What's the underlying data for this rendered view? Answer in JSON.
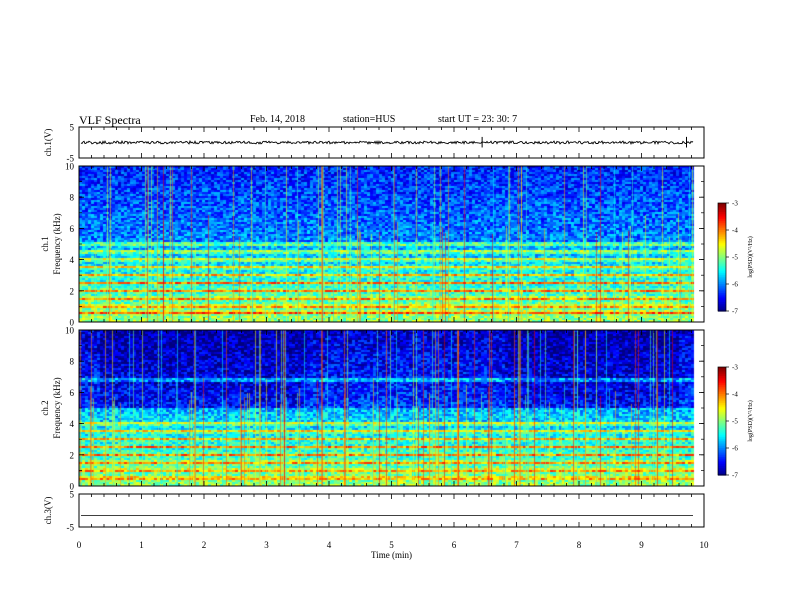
{
  "header": {
    "title": "VLF Spectra",
    "date": "Feb. 14, 2018",
    "station": "station=HUS",
    "start": "start  UT  =   23: 30: 7"
  },
  "chart_data": {
    "type": "heatmap",
    "xlabel": "Time (min)",
    "xlim": [
      0,
      10
    ],
    "xticks": [
      "0",
      "1",
      "2",
      "3",
      "4",
      "5",
      "6",
      "7",
      "8",
      "9",
      "10"
    ],
    "panels": [
      {
        "id": "ch1-waveform",
        "type": "line",
        "ylabel": "ch.1(V)",
        "ylim": [
          -5,
          5
        ],
        "yticks": [
          "5",
          "-5"
        ],
        "baseline_value": 0,
        "data_end_min": 9.83
      },
      {
        "id": "ch1-spectrogram",
        "type": "heatmap",
        "ylabel_channel": "ch.1",
        "ylabel": "Frequency (kHz)",
        "ylim": [
          0,
          10
        ],
        "yticks": [
          "0",
          "2",
          "4",
          "6",
          "8",
          "10"
        ],
        "narrowband_lines_khz": [
          0.6,
          1.0,
          1.5,
          2.0,
          2.5,
          3.0,
          3.5,
          4.0,
          4.5,
          5.0
        ],
        "colorbar": {
          "label": "log(PSD)(V²/Hz)",
          "range": [
            -7,
            -3
          ],
          "ticks": [
            "-3",
            "-4",
            "-5",
            "-6",
            "-7"
          ]
        }
      },
      {
        "id": "ch2-spectrogram",
        "type": "heatmap",
        "ylabel_channel": "ch.2",
        "ylabel": "Frequency (kHz)",
        "ylim": [
          0,
          10
        ],
        "yticks": [
          "0",
          "2",
          "4",
          "6",
          "8",
          "10"
        ],
        "narrowband_lines_khz": [
          0.5,
          1.0,
          1.5,
          2.0,
          2.5,
          3.0,
          3.5,
          4.0,
          6.8
        ],
        "colorbar": {
          "label": "log(PSD)(V²/Hz)",
          "range": [
            -7,
            -3
          ],
          "ticks": [
            "-3",
            "-4",
            "-5",
            "-6",
            "-7"
          ]
        }
      },
      {
        "id": "ch3-waveform",
        "type": "line",
        "ylabel": "ch.3(V)",
        "ylim": [
          -5,
          5
        ],
        "yticks": [
          "5",
          "-5"
        ],
        "baseline_value": -1.5,
        "data_end_min": 9.83
      }
    ]
  }
}
